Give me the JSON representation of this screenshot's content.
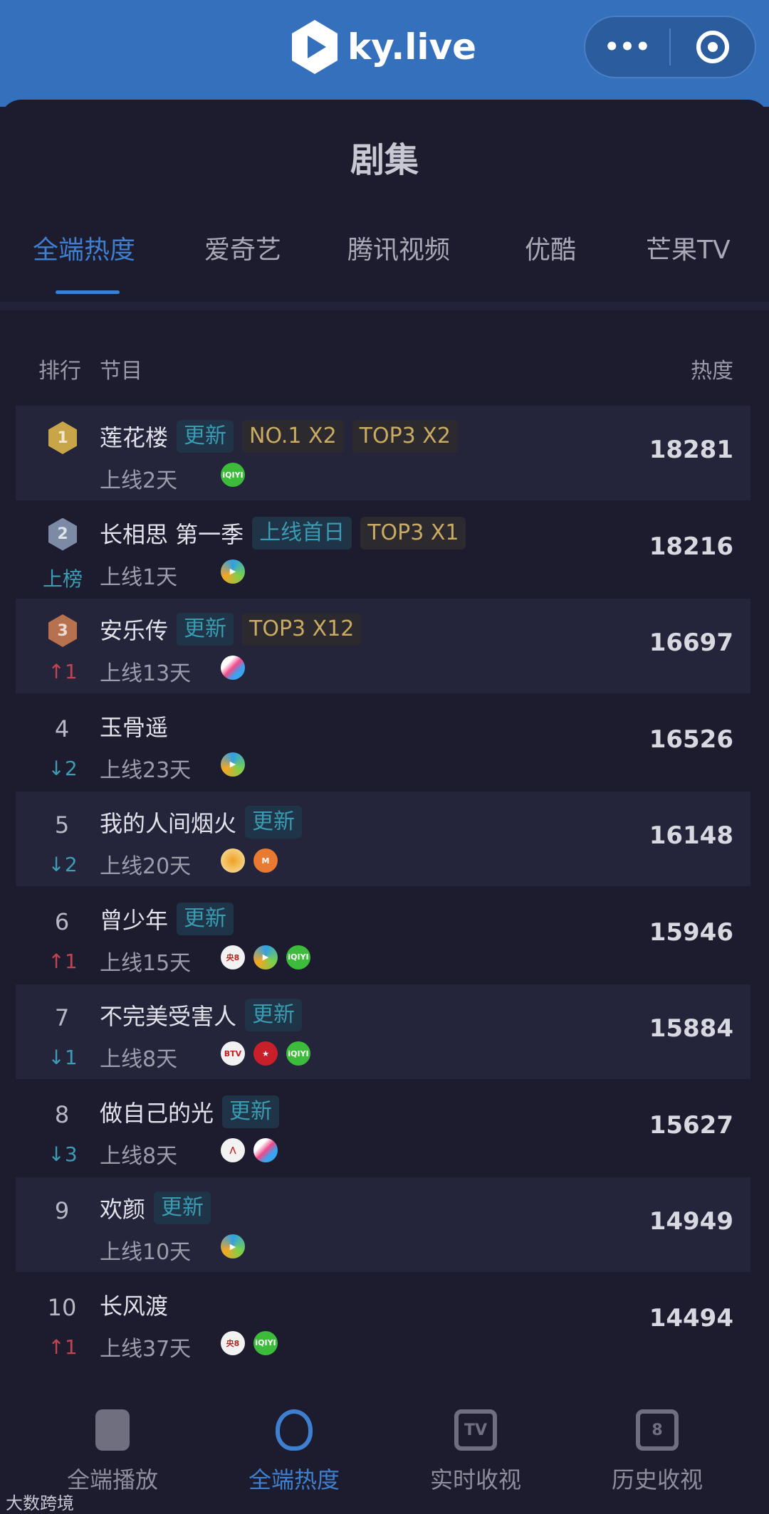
{
  "app": {
    "logo_text": "ky.live",
    "more_icon": "•••"
  },
  "page_title": "剧集",
  "tabs": [
    {
      "label": "全端热度",
      "active": true
    },
    {
      "label": "爱奇艺"
    },
    {
      "label": "腾讯视频"
    },
    {
      "label": "优酷"
    },
    {
      "label": "芒果TV"
    }
  ],
  "table_header": {
    "rank": "排行",
    "program": "节目",
    "heat": "热度"
  },
  "rows": [
    {
      "rank": "1",
      "medal": "gold",
      "change": "",
      "change_dir": "",
      "title": "莲花楼",
      "tags": [
        {
          "text": "更新",
          "style": "cyan"
        },
        {
          "text": "NO.1 X2",
          "style": "gold"
        },
        {
          "text": "TOP3 X2",
          "style": "gold"
        }
      ],
      "online": "上线2天",
      "platforms": [
        "iqiyi"
      ],
      "heat": "18281"
    },
    {
      "rank": "2",
      "medal": "silver",
      "change": "上榜",
      "change_dir": "new",
      "title": "长相思 第一季",
      "tags": [
        {
          "text": "上线首日",
          "style": "cyan"
        },
        {
          "text": "TOP3 X1",
          "style": "gold"
        }
      ],
      "online": "上线1天",
      "platforms": [
        "tencent-video"
      ],
      "heat": "18216"
    },
    {
      "rank": "3",
      "medal": "bronze",
      "change": "1",
      "change_dir": "up",
      "title": "安乐传",
      "tags": [
        {
          "text": "更新",
          "style": "cyan"
        },
        {
          "text": "TOP3 X12",
          "style": "gold"
        }
      ],
      "online": "上线13天",
      "platforms": [
        "youku"
      ],
      "heat": "16697"
    },
    {
      "rank": "4",
      "change": "2",
      "change_dir": "down",
      "title": "玉骨遥",
      "tags": [],
      "online": "上线23天",
      "platforms": [
        "tencent-video"
      ],
      "heat": "16526"
    },
    {
      "rank": "5",
      "change": "2",
      "change_dir": "down",
      "title": "我的人间烟火",
      "tags": [
        {
          "text": "更新",
          "style": "cyan"
        }
      ],
      "online": "上线20天",
      "platforms": [
        "hunan-tv",
        "mgtv"
      ],
      "heat": "16148"
    },
    {
      "rank": "6",
      "change": "1",
      "change_dir": "up",
      "title": "曾少年",
      "tags": [
        {
          "text": "更新",
          "style": "cyan"
        }
      ],
      "online": "上线15天",
      "platforms": [
        "cctv8",
        "tencent-video",
        "iqiyi"
      ],
      "heat": "15946"
    },
    {
      "rank": "7",
      "change": "1",
      "change_dir": "down",
      "title": "不完美受害人",
      "tags": [
        {
          "text": "更新",
          "style": "cyan"
        }
      ],
      "online": "上线8天",
      "platforms": [
        "btv",
        "dragon-tv",
        "iqiyi"
      ],
      "heat": "15884"
    },
    {
      "rank": "8",
      "change": "3",
      "change_dir": "down",
      "title": "做自己的光",
      "tags": [
        {
          "text": "更新",
          "style": "cyan"
        }
      ],
      "online": "上线8天",
      "platforms": [
        "jiangsu-tv",
        "youku"
      ],
      "heat": "15627"
    },
    {
      "rank": "9",
      "change": "",
      "change_dir": "",
      "title": "欢颜",
      "tags": [
        {
          "text": "更新",
          "style": "cyan"
        }
      ],
      "online": "上线10天",
      "platforms": [
        "tencent-video"
      ],
      "heat": "14949"
    },
    {
      "rank": "10",
      "change": "1",
      "change_dir": "up",
      "title": "长风渡",
      "tags": [],
      "online": "上线37天",
      "platforms": [
        "cctv8",
        "iqiyi"
      ],
      "heat": "14494"
    }
  ],
  "bottom_nav": [
    {
      "label": "全端播放",
      "icon": "phone-icon"
    },
    {
      "label": "全端热度",
      "icon": "flame-icon",
      "active": true
    },
    {
      "label": "实时收视",
      "icon": "tv-icon",
      "glyph": "TV"
    },
    {
      "label": "历史收视",
      "icon": "hourglass-icon",
      "glyph": "8"
    }
  ],
  "watermark": "大数跨境",
  "colors": {
    "header": "#3570bd",
    "accent": "#3f7fd0",
    "up": "#c2444e",
    "down": "#3d9bb5",
    "gold_tag": "#c9ab63"
  }
}
